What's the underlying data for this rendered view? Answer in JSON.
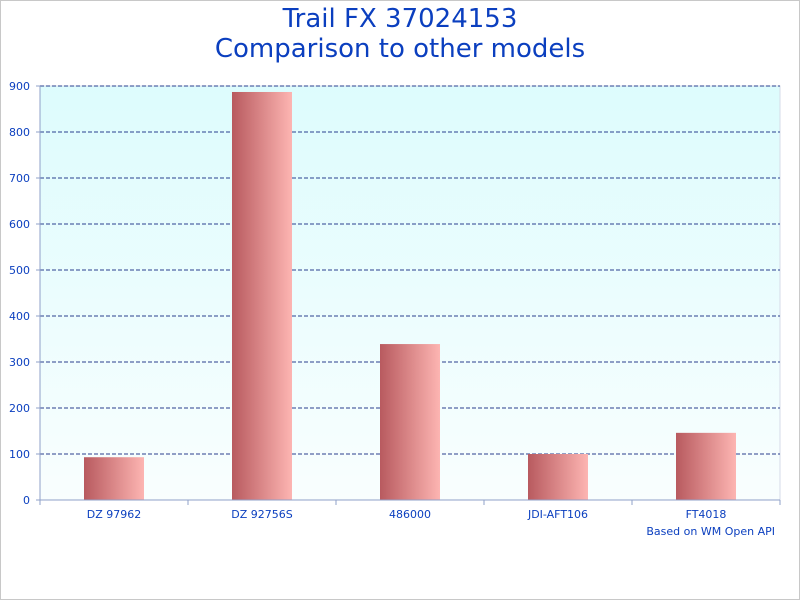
{
  "chart_data": {
    "type": "bar",
    "title_lines": [
      "Trail FX 37024153",
      "Comparison to other models"
    ],
    "categories": [
      "DZ 97962",
      "DZ 92756S",
      "486000",
      "JDI-AFT106",
      "FT4018"
    ],
    "values": [
      93,
      887,
      339,
      100,
      146
    ],
    "ylim": [
      0,
      900
    ],
    "yticks": [
      0,
      100,
      200,
      300,
      400,
      500,
      600,
      700,
      800,
      900
    ],
    "grid": true,
    "xlabel": "",
    "ylabel": "",
    "credit": "Based on WM Open API",
    "colors": {
      "text": "#0b3fbf",
      "grid": "#2a3f8f",
      "plot_top": "#ddfcfd",
      "plot_bottom": "#f9fefe",
      "bar_dark": "#b85a5f",
      "bar_light": "#fdb5b2"
    }
  }
}
